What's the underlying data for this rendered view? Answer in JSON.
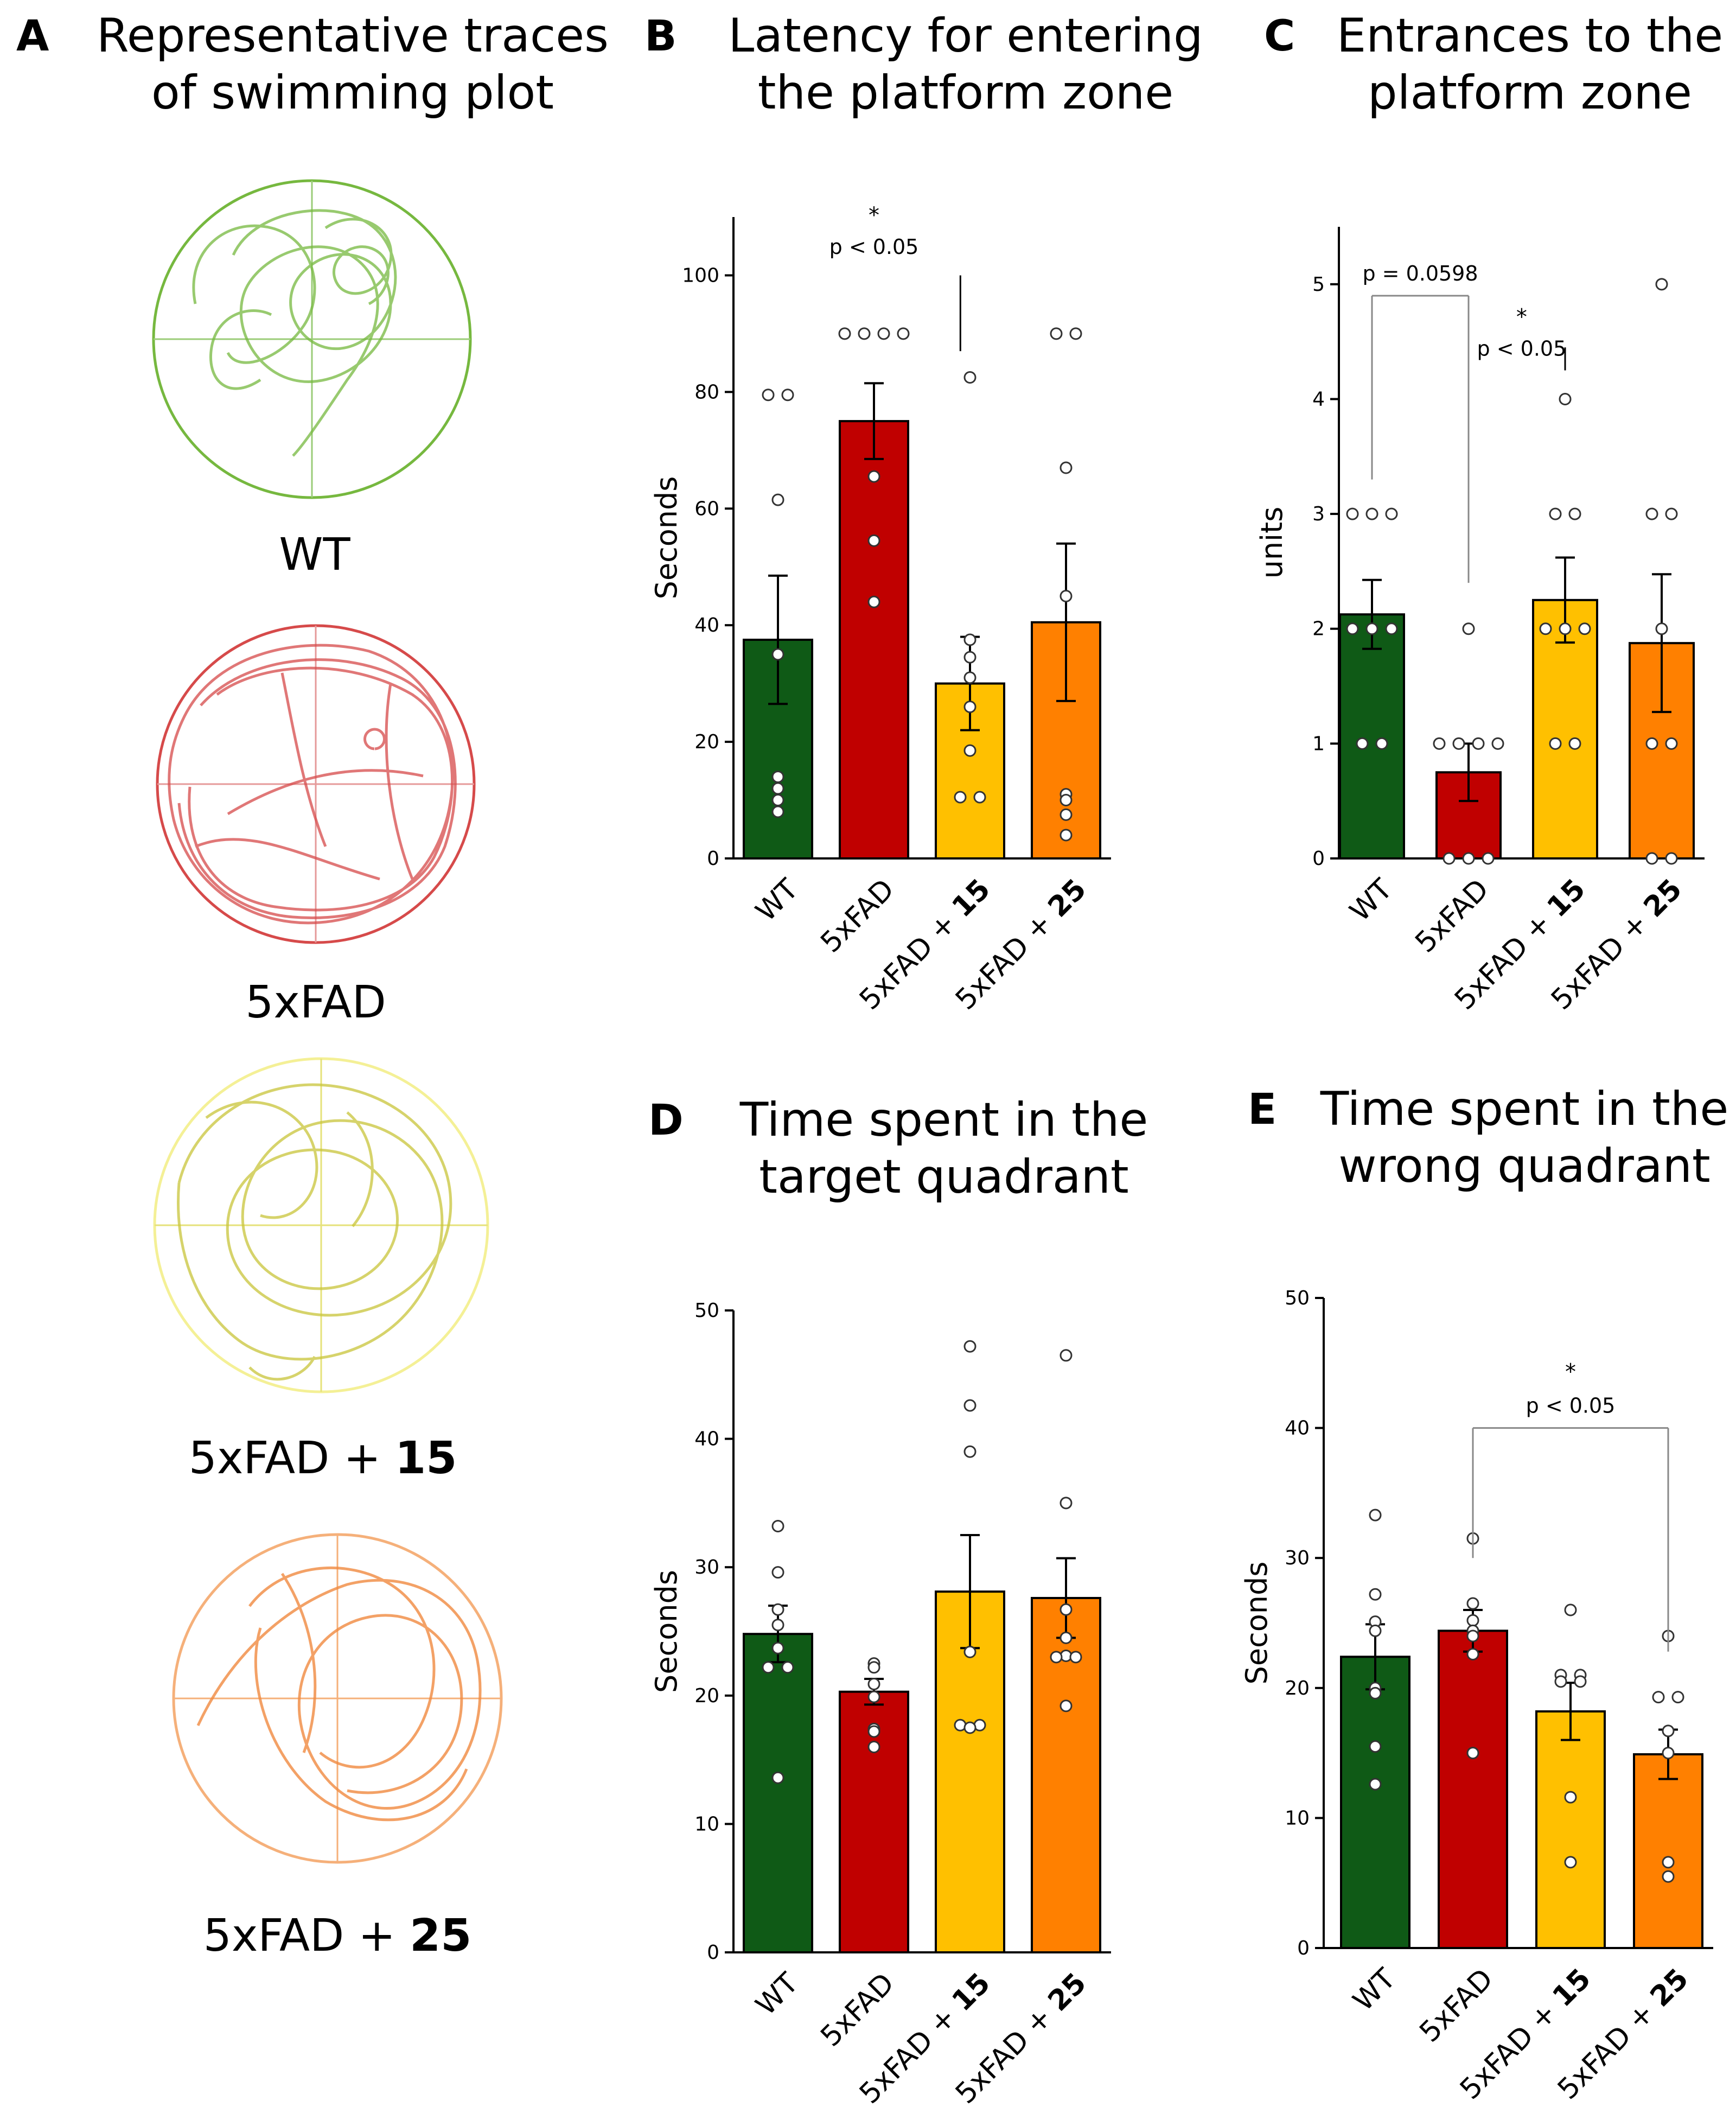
{
  "colors": {
    "wt": "#0f5a16",
    "fad": "#c00000",
    "fad15": "#ffc000",
    "fad25": "#ff8000",
    "wt_trace": "#76b83f",
    "fad_trace": "#d64a4a",
    "fad15_trace": "#c8c43a",
    "fad25_trace": "#f08a40"
  },
  "panel_a": {
    "letter": "A",
    "title_line1": "Representative traces",
    "title_line2": "of swimming plot",
    "traces": [
      {
        "label": "WT",
        "bold": ""
      },
      {
        "label": "5xFAD",
        "bold": ""
      },
      {
        "label": "5xFAD + ",
        "bold": "15"
      },
      {
        "label": "5xFAD + ",
        "bold": "25"
      }
    ]
  },
  "chart_data": [
    {
      "id": "B",
      "letter": "B",
      "type": "bar",
      "title_line1": "Latency for entering",
      "title_line2": "the platform zone",
      "ylabel": "Seconds",
      "ylim": [
        0,
        110
      ],
      "yticks": [
        0,
        20,
        40,
        60,
        80,
        100
      ],
      "categories": [
        {
          "text": "WT",
          "bold": ""
        },
        {
          "text": "5xFAD",
          "bold": ""
        },
        {
          "text": "5xFAD + ",
          "bold": "15"
        },
        {
          "text": "5xFAD + ",
          "bold": "25"
        }
      ],
      "values": [
        37.5,
        75,
        30,
        40.5
      ],
      "sem": [
        11,
        6.5,
        8,
        13.5
      ],
      "points": [
        [
          79.5,
          79.5,
          61.5,
          35,
          14,
          12,
          10,
          8
        ],
        [
          90,
          90,
          90,
          90,
          65.5,
          54.5,
          44
        ],
        [
          82.5,
          37.5,
          34.5,
          31,
          26,
          18.5,
          10.5,
          10.5
        ],
        [
          90,
          90,
          67,
          45,
          11,
          10,
          7.5,
          4
        ]
      ],
      "annotations": [
        {
          "star": "*",
          "text": "p < 0.05",
          "x_cat": 1,
          "y": 110,
          "line": false
        },
        {
          "star": "",
          "text": "",
          "x_cat": 1.9,
          "y": 100,
          "line_to": 87
        }
      ]
    },
    {
      "id": "C",
      "letter": "C",
      "type": "bar",
      "title_line1": "Entrances to the",
      "title_line2": "platform zone",
      "ylabel": "units",
      "ylim": [
        0,
        5.5
      ],
      "yticks": [
        0,
        1,
        2,
        3,
        4,
        5
      ],
      "categories": [
        {
          "text": "WT",
          "bold": ""
        },
        {
          "text": "5xFAD",
          "bold": ""
        },
        {
          "text": "5xFAD + ",
          "bold": "15"
        },
        {
          "text": "5xFAD + ",
          "bold": "25"
        }
      ],
      "values": [
        2.125,
        0.75,
        2.25,
        1.875
      ],
      "sem": [
        0.3,
        0.25,
        0.37,
        0.6
      ],
      "points": [
        [
          3,
          3,
          3,
          2,
          2,
          2,
          1,
          1
        ],
        [
          2,
          1,
          1,
          1,
          1,
          0,
          0,
          0
        ],
        [
          4,
          3,
          3,
          2,
          2,
          2,
          1,
          1
        ],
        [
          5,
          3,
          3,
          2,
          1,
          1,
          0,
          0
        ]
      ],
      "annotations": [
        {
          "text": "p = 0.0598",
          "from_cat": 0,
          "to_cat": 1,
          "y": 4.9
        },
        {
          "star": "*",
          "text": "p < 0.05",
          "x_cat": 1.55,
          "y": 4.7
        }
      ]
    },
    {
      "id": "D",
      "letter": "D",
      "type": "bar",
      "title_line1": "Time spent in the",
      "title_line2": "target quadrant",
      "ylabel": "Seconds",
      "ylim": [
        0,
        50
      ],
      "yticks": [
        0,
        10,
        20,
        30,
        40,
        50
      ],
      "categories": [
        {
          "text": "WT",
          "bold": ""
        },
        {
          "text": "5xFAD",
          "bold": ""
        },
        {
          "text": "5xFAD + ",
          "bold": "15"
        },
        {
          "text": "5xFAD + ",
          "bold": "25"
        }
      ],
      "values": [
        24.8,
        20.3,
        28.1,
        27.6
      ],
      "sem": [
        2.2,
        1.0,
        4.4,
        3.1
      ],
      "points": [
        [
          33.2,
          29.6,
          26.7,
          25.5,
          23.7,
          22.2,
          22.2,
          13.6
        ],
        [
          22.5,
          22.2,
          20.9,
          19.9,
          17.4,
          17.2,
          16.0
        ],
        [
          47.2,
          42.6,
          39.0,
          23.4,
          17.7,
          17.7,
          17.5
        ],
        [
          46.5,
          35.0,
          26.7,
          24.5,
          23.1,
          23.0,
          23.0,
          19.2
        ]
      ],
      "annotations": []
    },
    {
      "id": "E",
      "letter": "E",
      "type": "bar",
      "title_line1": "Time spent in the",
      "title_line2": "wrong quadrant",
      "ylabel": "Seconds",
      "ylim": [
        0,
        50
      ],
      "yticks": [
        0,
        10,
        20,
        30,
        40,
        50
      ],
      "categories": [
        {
          "text": "WT",
          "bold": ""
        },
        {
          "text": "5xFAD",
          "bold": ""
        },
        {
          "text": "5xFAD + ",
          "bold": "15"
        },
        {
          "text": "5xFAD + ",
          "bold": "25"
        }
      ],
      "values": [
        22.4,
        24.4,
        18.2,
        14.9
      ],
      "sem": [
        2.5,
        1.6,
        2.2,
        1.9
      ],
      "points": [
        [
          33.3,
          27.2,
          25.1,
          24.4,
          20.0,
          19.6,
          15.5,
          12.6
        ],
        [
          31.5,
          26.5,
          25.2,
          24.4,
          24.0,
          22.6,
          15.0
        ],
        [
          26.0,
          21.0,
          21.0,
          20.5,
          20.5,
          11.6,
          6.6
        ],
        [
          24.0,
          19.3,
          19.3,
          16.7,
          15.0,
          6.6,
          5.5
        ]
      ],
      "annotations": [
        {
          "star": "*",
          "text": "p < 0.05",
          "from_cat": 1,
          "to_cat": 3,
          "y": 40
        }
      ]
    }
  ]
}
